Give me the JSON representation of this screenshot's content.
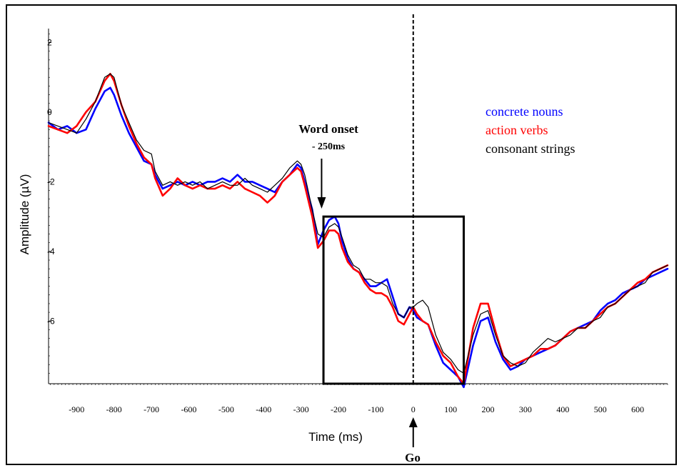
{
  "chart_data": {
    "type": "line",
    "title": "",
    "xlabel": "Time (ms)",
    "ylabel": "Amplitude (µV)",
    "xlim": [
      -975,
      680
    ],
    "ylim": [
      -7.8,
      2.4
    ],
    "x_ticks": [
      -900,
      -800,
      -700,
      -600,
      -500,
      -400,
      -300,
      -200,
      -100,
      0,
      100,
      200,
      300,
      400,
      500,
      600
    ],
    "y_ticks": [
      2,
      0,
      -2,
      -4,
      -6
    ],
    "grid": false,
    "legend_position": "right",
    "series": [
      {
        "name": "concrete nouns",
        "color": "#0000ff",
        "x": [
          -975,
          -950,
          -925,
          -900,
          -875,
          -850,
          -825,
          -810,
          -800,
          -780,
          -760,
          -740,
          -720,
          -700,
          -690,
          -670,
          -650,
          -630,
          -610,
          -590,
          -570,
          -550,
          -530,
          -510,
          -490,
          -470,
          -450,
          -430,
          -410,
          -390,
          -370,
          -350,
          -330,
          -310,
          -300,
          -290,
          -270,
          -255,
          -240,
          -225,
          -210,
          -200,
          -190,
          -175,
          -160,
          -145,
          -130,
          -115,
          -100,
          -85,
          -70,
          -55,
          -40,
          -25,
          -10,
          0,
          10,
          25,
          40,
          60,
          80,
          100,
          120,
          135,
          160,
          180,
          200,
          220,
          240,
          260,
          280,
          300,
          320,
          340,
          360,
          380,
          400,
          420,
          440,
          460,
          480,
          500,
          520,
          540,
          560,
          580,
          600,
          620,
          640,
          660,
          680
        ],
        "values": [
          -0.3,
          -0.5,
          -0.4,
          -0.6,
          -0.5,
          0.1,
          0.6,
          0.7,
          0.5,
          -0.1,
          -0.6,
          -1.0,
          -1.4,
          -1.5,
          -1.8,
          -2.2,
          -2.1,
          -2.0,
          -2.1,
          -2.0,
          -2.1,
          -2.0,
          -2.0,
          -1.9,
          -2.0,
          -1.8,
          -2.0,
          -2.0,
          -2.1,
          -2.2,
          -2.3,
          -2.0,
          -1.8,
          -1.5,
          -1.6,
          -2.0,
          -2.8,
          -3.8,
          -3.4,
          -3.1,
          -3.0,
          -3.2,
          -3.7,
          -4.2,
          -4.5,
          -4.6,
          -4.8,
          -5.0,
          -5.0,
          -4.9,
          -4.8,
          -5.3,
          -5.8,
          -5.9,
          -5.6,
          -5.7,
          -5.9,
          -6.0,
          -6.1,
          -6.7,
          -7.2,
          -7.4,
          -7.6,
          -7.9,
          -6.7,
          -6.0,
          -5.9,
          -6.6,
          -7.1,
          -7.4,
          -7.3,
          -7.1,
          -7.0,
          -6.9,
          -6.8,
          -6.7,
          -6.5,
          -6.3,
          -6.2,
          -6.1,
          -6.0,
          -5.7,
          -5.5,
          -5.4,
          -5.2,
          -5.1,
          -5.0,
          -4.8,
          -4.7,
          -4.6,
          -4.5
        ]
      },
      {
        "name": "action verbs",
        "color": "#ff0000",
        "x": [
          -975,
          -950,
          -925,
          -900,
          -875,
          -850,
          -825,
          -810,
          -800,
          -780,
          -760,
          -740,
          -720,
          -700,
          -690,
          -670,
          -650,
          -630,
          -610,
          -590,
          -570,
          -550,
          -530,
          -510,
          -490,
          -470,
          -450,
          -430,
          -410,
          -390,
          -370,
          -350,
          -330,
          -310,
          -300,
          -290,
          -270,
          -255,
          -240,
          -225,
          -210,
          -200,
          -190,
          -175,
          -160,
          -145,
          -130,
          -115,
          -100,
          -85,
          -70,
          -55,
          -40,
          -25,
          -10,
          0,
          10,
          25,
          40,
          60,
          80,
          100,
          120,
          135,
          160,
          180,
          200,
          220,
          240,
          260,
          280,
          300,
          320,
          340,
          360,
          380,
          400,
          420,
          440,
          460,
          480,
          500,
          520,
          540,
          560,
          580,
          600,
          620,
          640,
          660,
          680
        ],
        "values": [
          -0.4,
          -0.5,
          -0.6,
          -0.4,
          0.0,
          0.3,
          0.9,
          1.1,
          0.9,
          0.2,
          -0.4,
          -0.9,
          -1.3,
          -1.5,
          -1.9,
          -2.4,
          -2.2,
          -1.9,
          -2.1,
          -2.2,
          -2.1,
          -2.2,
          -2.2,
          -2.1,
          -2.2,
          -2.0,
          -2.2,
          -2.3,
          -2.4,
          -2.6,
          -2.4,
          -2.0,
          -1.8,
          -1.6,
          -1.7,
          -2.1,
          -3.0,
          -3.9,
          -3.7,
          -3.4,
          -3.4,
          -3.5,
          -3.9,
          -4.3,
          -4.5,
          -4.6,
          -4.9,
          -5.1,
          -5.2,
          -5.2,
          -5.3,
          -5.6,
          -6.0,
          -6.1,
          -5.8,
          -5.6,
          -5.8,
          -6.0,
          -6.1,
          -6.6,
          -7.0,
          -7.2,
          -7.6,
          -7.8,
          -6.2,
          -5.5,
          -5.5,
          -6.3,
          -7.0,
          -7.3,
          -7.2,
          -7.1,
          -7.0,
          -6.8,
          -6.8,
          -6.7,
          -6.5,
          -6.3,
          -6.2,
          -6.2,
          -6.0,
          -5.8,
          -5.6,
          -5.5,
          -5.3,
          -5.1,
          -4.9,
          -4.8,
          -4.6,
          -4.5,
          -4.4
        ]
      },
      {
        "name": "consonant strings",
        "color": "#000000",
        "x": [
          -975,
          -950,
          -925,
          -900,
          -875,
          -850,
          -825,
          -810,
          -800,
          -780,
          -760,
          -740,
          -720,
          -700,
          -690,
          -670,
          -650,
          -630,
          -610,
          -590,
          -570,
          -550,
          -530,
          -510,
          -490,
          -470,
          -450,
          -430,
          -410,
          -390,
          -370,
          -350,
          -330,
          -310,
          -300,
          -290,
          -270,
          -255,
          -240,
          -225,
          -210,
          -200,
          -190,
          -175,
          -160,
          -145,
          -130,
          -115,
          -100,
          -85,
          -70,
          -55,
          -40,
          -25,
          -10,
          0,
          10,
          25,
          40,
          60,
          80,
          100,
          120,
          135,
          160,
          180,
          200,
          220,
          240,
          260,
          280,
          300,
          320,
          340,
          360,
          380,
          400,
          420,
          440,
          460,
          480,
          500,
          520,
          540,
          560,
          580,
          600,
          620,
          640,
          660,
          680
        ],
        "values": [
          -0.3,
          -0.4,
          -0.5,
          -0.6,
          -0.2,
          0.3,
          1.0,
          1.1,
          1.0,
          0.2,
          -0.3,
          -0.8,
          -1.1,
          -1.2,
          -1.7,
          -2.1,
          -2.0,
          -2.1,
          -2.0,
          -2.1,
          -2.0,
          -2.2,
          -2.1,
          -2.0,
          -2.1,
          -2.1,
          -1.9,
          -2.1,
          -2.2,
          -2.3,
          -2.1,
          -1.9,
          -1.6,
          -1.4,
          -1.5,
          -1.8,
          -2.8,
          -3.5,
          -3.6,
          -3.3,
          -3.2,
          -3.3,
          -3.6,
          -4.1,
          -4.4,
          -4.5,
          -4.8,
          -4.8,
          -4.9,
          -4.9,
          -5.0,
          -5.5,
          -5.8,
          -5.9,
          -5.6,
          -5.6,
          -5.5,
          -5.4,
          -5.6,
          -6.4,
          -6.9,
          -7.1,
          -7.4,
          -7.5,
          -6.4,
          -5.8,
          -5.7,
          -6.4,
          -7.0,
          -7.2,
          -7.3,
          -7.2,
          -6.9,
          -6.7,
          -6.5,
          -6.6,
          -6.5,
          -6.4,
          -6.2,
          -6.2,
          -6.0,
          -5.9,
          -5.6,
          -5.5,
          -5.3,
          -5.1,
          -5.0,
          -4.9,
          -4.6,
          -4.5,
          -4.4
        ]
      }
    ],
    "annotations": {
      "word_onset_title": "Word onset",
      "word_onset_sub": "- 250ms",
      "word_onset_x": -245,
      "go_label": "Go",
      "go_x": 0,
      "window_x": [
        -240,
        135
      ],
      "window_y": [
        -7.8,
        -3.0
      ]
    }
  },
  "legend": [
    {
      "label": "concrete nouns",
      "color": "#0000ff"
    },
    {
      "label": "action verbs",
      "color": "#ff0000"
    },
    {
      "label": "consonant strings",
      "color": "#000000"
    }
  ]
}
